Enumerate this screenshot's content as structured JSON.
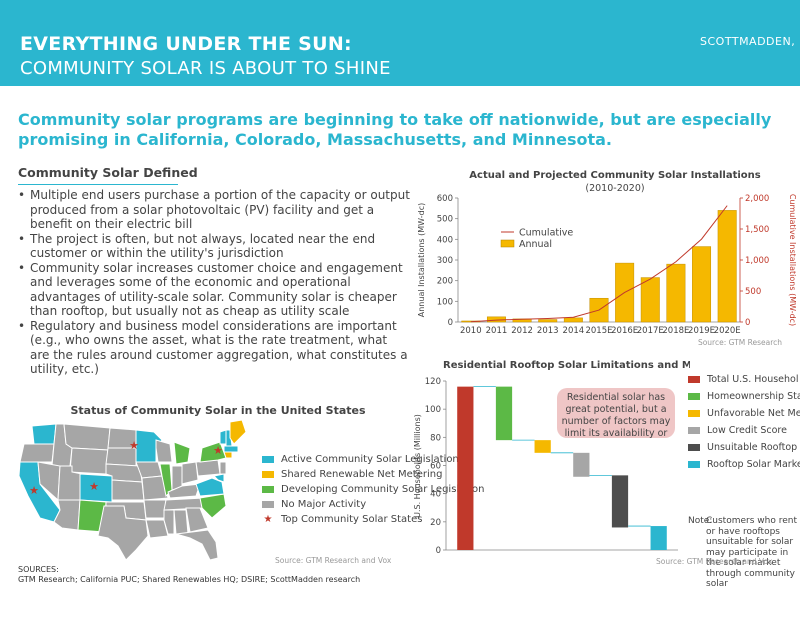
{
  "header": {
    "title_line1": "EVERYTHING UNDER THE SUN:",
    "title_line2": "COMMUNITY SOLAR IS ABOUT TO SHINE",
    "brand": "SCOTTMADDEN,"
  },
  "headline": "Community solar programs are beginning to take off nationwide, but are especially promising in California, Colorado, Massachusetts, and Minnesota.",
  "definition": {
    "title": "Community Solar Defined",
    "bullets": [
      "Multiple end users purchase a portion of the capacity or output produced from a solar photovoltaic (PV) facility and get a benefit on their electric bill",
      "The project is often, but not always, located near the end customer or within the utility's jurisdiction",
      "Community solar increases customer choice and engagement and leverages some of the economic and operational advantages of utility-scale solar. Community solar is cheaper than rooftop, but usually not as cheap as utility scale",
      "Regulatory and business model considerations are important (e.g., who owns the asset, what is the rate treatment, what are the rules around customer aggregation, what constitutes a utility, etc.)"
    ]
  },
  "status_map": {
    "title": "Status of Community Solar in the United States",
    "legend": [
      {
        "label": "Active Community Solar Legislation",
        "color": "#2bb6cf"
      },
      {
        "label": "Shared Renewable Net Metering",
        "color": "#f5b800"
      },
      {
        "label": "Developing Community Solar Legislation",
        "color": "#5cb946"
      },
      {
        "label": "No Major Activity",
        "color": "#a6a6a6"
      }
    ],
    "top_states_label": "Top Community Solar States",
    "source": "Source: GTM Research and Vox"
  },
  "sources": {
    "label": "SOURCES:",
    "text": "GTM Research; California PUC; Shared Renewables HQ; DSIRE; ScottMadden research"
  },
  "chart_data": [
    {
      "type": "bar",
      "title": "Actual and Projected Community Solar Installations",
      "subtitle": "(2010-2020)",
      "categories": [
        "2010",
        "2011",
        "2012",
        "2013",
        "2014",
        "2015E",
        "2016E",
        "2017E",
        "2018E",
        "2019E",
        "2020E"
      ],
      "series": [
        {
          "name": "Annual",
          "type": "bar",
          "axis": "left",
          "color": "#f5b800",
          "values": [
            5,
            25,
            15,
            12,
            20,
            115,
            285,
            215,
            280,
            365,
            540
          ]
        },
        {
          "name": "Cumulative",
          "type": "line",
          "axis": "right",
          "color": "#c0392b",
          "values": [
            5,
            30,
            45,
            57,
            77,
            192,
            477,
            692,
            972,
            1337,
            1877
          ]
        }
      ],
      "ylabel": "Annual Installations (MW-dc)",
      "y2label": "Cumulative Installations (MW-dc)",
      "ylim": [
        0,
        600
      ],
      "yticks": [
        "0",
        "100",
        "200",
        "300",
        "400",
        "500",
        "600"
      ],
      "y2lim": [
        0,
        2000
      ],
      "y2ticks": [
        "0",
        "500",
        "1,000",
        "1,500",
        "2,000"
      ],
      "legend_position": "top-left",
      "source": "Source: GTM Research"
    },
    {
      "type": "bar",
      "title": "Residential Rooftop Solar Limitations and Market Potential",
      "ylabel": "U.S. Households (Millions)",
      "ylim": [
        0,
        120
      ],
      "yticks": [
        "0",
        "20",
        "40",
        "60",
        "80",
        "100",
        "120"
      ],
      "series": [
        {
          "name": "Total U.S. Households",
          "color": "#c0392b",
          "start": 0,
          "end": 116
        },
        {
          "name": "Homeownership Status",
          "color": "#5cb946",
          "start": 78,
          "end": 116
        },
        {
          "name": "Unfavorable Net Metering",
          "color": "#f5b800",
          "start": 69,
          "end": 78
        },
        {
          "name": "Low Credit Score",
          "color": "#a6a6a6",
          "start": 52,
          "end": 69
        },
        {
          "name": "Unsuitable Rooftop",
          "color": "#4d4d4d",
          "start": 16,
          "end": 53
        },
        {
          "name": "Rooftop Solar Market",
          "color": "#2bb6cf",
          "start": 0,
          "end": 17
        }
      ],
      "legend_labels": [
        "Total U.S. Househol",
        "Homeownership Sta",
        "Unfavorable Net Me",
        "Low Credit Score",
        "Unsuitable Rooftop",
        "Rooftop Solar Marke"
      ],
      "callout": "Residential solar has great potential, but a number of factors may limit its availability or attractiveness to certain customers",
      "note_label": "Note:",
      "note": "Customers who rent or have rooftops unsuitable for solar may participate in the solar market through community solar",
      "source": "Source: GTM Research and Vox"
    }
  ]
}
